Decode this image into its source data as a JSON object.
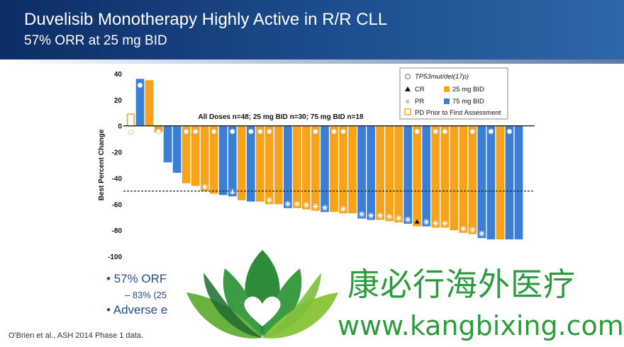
{
  "header": {
    "title": "Duvelisib Monotherapy Highly Active in R/R CLL",
    "subtitle": "57% ORR at 25 mg BID",
    "colors": {
      "dark": "#0d2d66",
      "light": "#2f67a8"
    }
  },
  "chart_data": {
    "type": "bar",
    "ylabel": "Best Percent Change",
    "ylim": [
      -100,
      40
    ],
    "yticks": [
      40,
      20,
      0,
      -20,
      -40,
      -60,
      -80,
      -100
    ],
    "reference_line": -50,
    "annotation": "All Doses n=48; 25 mg BID n=30; 75 mg BID n=18",
    "legend": {
      "placement": "top-right",
      "entries": [
        {
          "symbol": "open-circle",
          "label": "TP53mut/del(17p)"
        },
        {
          "symbol": "triangle",
          "label": "CR"
        },
        {
          "symbol": "swatch-orange",
          "label": "25 mg BID"
        },
        {
          "symbol": "star",
          "label": "PR"
        },
        {
          "symbol": "swatch-blue",
          "label": "75 mg BID"
        },
        {
          "symbol": "open-orange-square",
          "label": "PD Prior to First Assessment"
        }
      ]
    },
    "series_colors": {
      "25 mg BID": "#f7a21b",
      "75 mg BID": "#3a7fd5"
    },
    "bars": [
      {
        "value": 9,
        "dose": "25",
        "pd": true,
        "tp53": true
      },
      {
        "value": 36,
        "dose": "75",
        "tp53": true
      },
      {
        "value": 35,
        "dose": "25"
      },
      {
        "value": -5,
        "dose": "25",
        "tp53": true
      },
      {
        "value": -28,
        "dose": "75"
      },
      {
        "value": -36,
        "dose": "75"
      },
      {
        "value": -44,
        "dose": "25",
        "tp53": true
      },
      {
        "value": -46,
        "dose": "25",
        "tp53": true
      },
      {
        "value": -50,
        "dose": "25",
        "pr": true
      },
      {
        "value": -52,
        "dose": "25",
        "tp53": true
      },
      {
        "value": -53,
        "dose": "75"
      },
      {
        "value": -54,
        "dose": "75",
        "pr": true,
        "tp53": true
      },
      {
        "value": -57,
        "dose": "25"
      },
      {
        "value": -58,
        "dose": "75",
        "tp53": true
      },
      {
        "value": -58,
        "dose": "25",
        "tp53": true
      },
      {
        "value": -60,
        "dose": "25",
        "pr": true,
        "tp53": true
      },
      {
        "value": -60,
        "dose": "25"
      },
      {
        "value": -63,
        "dose": "75",
        "pr": true
      },
      {
        "value": -63,
        "dose": "25",
        "pr": true
      },
      {
        "value": -64,
        "dose": "25",
        "pr": true
      },
      {
        "value": -65,
        "dose": "25",
        "pr": true,
        "tp53": true
      },
      {
        "value": -66,
        "dose": "75",
        "pr": true
      },
      {
        "value": -66,
        "dose": "25",
        "tp53": true
      },
      {
        "value": -67,
        "dose": "25",
        "pr": true,
        "tp53": true
      },
      {
        "value": -67,
        "dose": "25"
      },
      {
        "value": -71,
        "dose": "75",
        "pr": true
      },
      {
        "value": -72,
        "dose": "75",
        "pr": true
      },
      {
        "value": -72,
        "dose": "25",
        "pr": true
      },
      {
        "value": -73,
        "dose": "25",
        "pr": true
      },
      {
        "value": -74,
        "dose": "25",
        "pr": true
      },
      {
        "value": -75,
        "dose": "75",
        "pr": true
      },
      {
        "value": -77,
        "dose": "25",
        "cr": true,
        "tp53": true
      },
      {
        "value": -77,
        "dose": "75",
        "pr": true
      },
      {
        "value": -78,
        "dose": "25",
        "pr": true,
        "tp53": true
      },
      {
        "value": -78,
        "dose": "25",
        "pr": true,
        "tp53": true
      },
      {
        "value": -80,
        "dose": "25"
      },
      {
        "value": -82,
        "dose": "25",
        "pr": true
      },
      {
        "value": -83,
        "dose": "25",
        "pr": true,
        "tp53": true
      },
      {
        "value": -86,
        "dose": "75",
        "pr": true
      },
      {
        "value": -87,
        "dose": "75",
        "tp53": true
      },
      {
        "value": -87,
        "dose": "25"
      },
      {
        "value": -87,
        "dose": "75",
        "tp53": true
      },
      {
        "value": -87,
        "dose": "75"
      }
    ]
  },
  "bullets": {
    "b1": "57% ORF",
    "b2": "83% (25",
    "b3": "Adverse e"
  },
  "footnote": "O'Brien et al., ASH 2014 Phase 1 data.",
  "watermark": {
    "cn": "康必行海外医疗",
    "url": "www.kangbixing.com",
    "color": "#2e9a3e"
  }
}
